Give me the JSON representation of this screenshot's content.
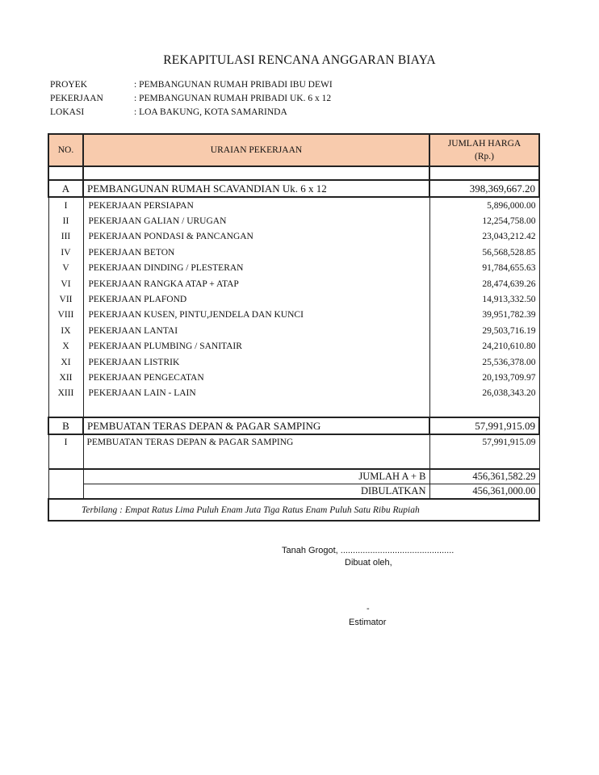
{
  "title": "REKAPITULASI RENCANA ANGGARAN BIAYA",
  "meta": [
    {
      "label": "PROYEK",
      "value": ": PEMBANGUNAN RUMAH PRIBADI IBU DEWI"
    },
    {
      "label": "PEKERJAAN",
      "value": ": PEMBANGUNAN RUMAH PRIBADI UK. 6 x 12"
    },
    {
      "label": "LOKASI",
      "value": ": LOA BAKUNG, KOTA SAMARINDA"
    }
  ],
  "table": {
    "header": {
      "no": "NO.",
      "desc": "URAIAN PEKERJAAN",
      "amount_line1": "JUMLAH HARGA",
      "amount_line2": "(Rp.)"
    },
    "header_color": "#f8cbad",
    "section_a": {
      "no": "A",
      "desc": "PEMBANGUNAN RUMAH SCAVANDIAN Uk. 6 x 12",
      "amount": "398,369,667.20"
    },
    "items_a": [
      {
        "no": "I",
        "desc": "PEKERJAAN PERSIAPAN",
        "amount": "5,896,000.00"
      },
      {
        "no": "II",
        "desc": "PEKERJAAN GALIAN / URUGAN",
        "amount": "12,254,758.00"
      },
      {
        "no": "III",
        "desc": "PEKERJAAN PONDASI & PANCANGAN",
        "amount": "23,043,212.42"
      },
      {
        "no": "IV",
        "desc": "PEKERJAAN BETON",
        "amount": "56,568,528.85"
      },
      {
        "no": "V",
        "desc": "PEKERJAAN DINDING / PLESTERAN",
        "amount": "91,784,655.63"
      },
      {
        "no": "VI",
        "desc": "PEKERJAAN RANGKA ATAP + ATAP",
        "amount": "28,474,639.26"
      },
      {
        "no": "VII",
        "desc": "PEKERJAAN PLAFOND",
        "amount": "14,913,332.50"
      },
      {
        "no": "VIII",
        "desc": "PEKERJAAN KUSEN, PINTU,JENDELA DAN KUNCI",
        "amount": "39,951,782.39"
      },
      {
        "no": "IX",
        "desc": "PEKERJAAN LANTAI",
        "amount": "29,503,716.19"
      },
      {
        "no": "X",
        "desc": "PEKERJAAN PLUMBING / SANITAIR",
        "amount": "24,210,610.80"
      },
      {
        "no": "XI",
        "desc": "PEKERJAAN LISTRIK",
        "amount": "25,536,378.00"
      },
      {
        "no": "XII",
        "desc": "PEKERJAAN PENGECATAN",
        "amount": "20,193,709.97"
      },
      {
        "no": "XIII",
        "desc": "PEKERJAAN LAIN - LAIN",
        "amount": "26,038,343.20"
      }
    ],
    "section_b": {
      "no": "B",
      "desc": "PEMBUATAN TERAS DEPAN & PAGAR SAMPING",
      "amount": "57,991,915.09"
    },
    "item_b": {
      "no": "I",
      "desc": "PEMBUATAN TERAS DEPAN & PAGAR SAMPING",
      "amount": "57,991,915.09"
    },
    "total": {
      "label": "JUMLAH A + B",
      "amount": "456,361,582.29"
    },
    "rounded": {
      "label": "DIBULATKAN",
      "amount": "456,361,000.00"
    },
    "words": "Terbilang :   Empat Ratus Lima Puluh Enam Juta Tiga Ratus Enam Puluh Satu Ribu Rupiah"
  },
  "signature": {
    "place_date": "Tanah Grogot, ..............................................",
    "made_by": "Dibuat oleh,",
    "name": "-",
    "role": "Estimator"
  }
}
